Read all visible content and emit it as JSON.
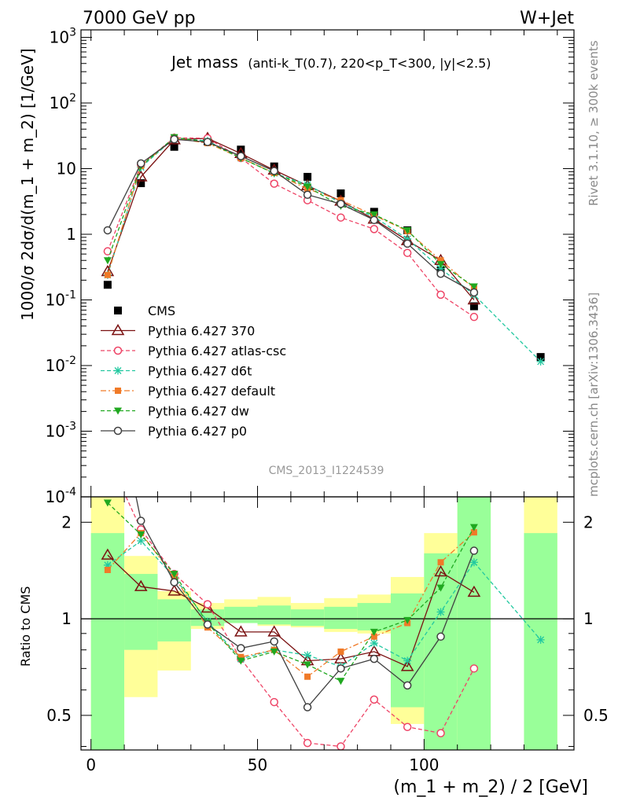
{
  "header": {
    "left": "7000 GeV pp",
    "right": "W+Jet"
  },
  "side_labels": {
    "rivet": "Rivet 3.1.10, ≥ 300k events",
    "mcplots": "mcplots.cern.ch [arXiv:1306.3436]"
  },
  "analysis_id": "CMS_2013_I1224539",
  "chart_data": [
    {
      "type": "scatter",
      "title": "Jet mass",
      "subtitle": "(anti-k_T(0.7), 220<p_T<300, |y|<2.5)",
      "ylabel": "1000/σ 2dσ/d(m_1 + m_2) [1/GeV]",
      "xlabel": "(m_1 + m_2) / 2 [GeV]",
      "yscale": "log",
      "xlim": [
        -3,
        145
      ],
      "ylim": [
        0.0001,
        1300
      ],
      "y_ticks": [
        "10^-4",
        "10^-3",
        "10^-2",
        "10^-1",
        "1",
        "10",
        "10^2",
        "10^3"
      ],
      "legend_position": "lower-left",
      "x": [
        5,
        15,
        25,
        35,
        45,
        55,
        65,
        75,
        85,
        95,
        105,
        115,
        135
      ],
      "series": [
        {
          "name": "CMS",
          "color": "#000000",
          "marker": "square",
          "line": "none",
          "values": [
            0.17,
            6.0,
            21.5,
            26.0,
            19.5,
            10.8,
            7.5,
            4.2,
            2.2,
            1.15,
            0.28,
            0.08,
            0.0135
          ]
        },
        {
          "name": "Pythia 6.427 370",
          "color": "#7a1010",
          "marker": "triangle-open",
          "line": "solid",
          "values": [
            0.27,
            7.5,
            27.5,
            29.0,
            17.0,
            9.5,
            5.5,
            3.2,
            1.7,
            0.8,
            0.4,
            0.1,
            null
          ]
        },
        {
          "name": "Pythia 6.427 atlas-csc",
          "color": "#ee4466",
          "marker": "circle-open",
          "line": "dashed",
          "values": [
            0.55,
            11.5,
            29.5,
            29.0,
            14.5,
            5.9,
            3.3,
            1.8,
            1.2,
            0.52,
            0.12,
            0.055,
            null
          ]
        },
        {
          "name": "Pythia 6.427 d6t",
          "color": "#22c8a0",
          "marker": "star",
          "line": "dashed",
          "values": [
            0.24,
            10.5,
            29.0,
            26.5,
            14.5,
            8.5,
            5.7,
            3.0,
            1.85,
            0.85,
            0.3,
            0.12,
            0.0115
          ]
        },
        {
          "name": "Pythia 6.427 default",
          "color": "#f07a28",
          "marker": "square-filled",
          "line": "dashdot",
          "values": [
            0.24,
            11.0,
            29.0,
            24.5,
            14.5,
            8.6,
            4.9,
            3.3,
            1.95,
            1.12,
            0.4,
            0.15,
            null
          ]
        },
        {
          "name": "Pythia 6.427 dw",
          "color": "#20a820",
          "marker": "triangle-down-filled",
          "line": "dashed",
          "values": [
            0.4,
            11.0,
            30.0,
            25.5,
            14.5,
            8.5,
            5.3,
            2.7,
            2.0,
            1.15,
            0.35,
            0.16,
            null
          ]
        },
        {
          "name": "Pythia 6.427 p0",
          "color": "#404040",
          "marker": "circle-open",
          "line": "solid",
          "values": [
            1.15,
            12.0,
            28.0,
            25.5,
            15.5,
            9.2,
            4.0,
            2.9,
            1.65,
            0.72,
            0.25,
            0.13,
            null
          ]
        }
      ]
    },
    {
      "type": "line",
      "ylabel": "Ratio to CMS",
      "xlabel": "(m_1 + m_2) / 2 [GeV]",
      "yscale": "log",
      "xlim": [
        -3,
        145
      ],
      "ylim": [
        0.39,
        2.4
      ],
      "x_ticks": [
        "0",
        "50",
        "100"
      ],
      "y_ticks": [
        "0.5",
        "1",
        "2"
      ],
      "reference_line": 1.0,
      "bands": {
        "x_edges": [
          0,
          10,
          20,
          30,
          40,
          50,
          60,
          70,
          80,
          90,
          100,
          110,
          120,
          130,
          140
        ],
        "yellow_low": [
          0.35,
          0.57,
          0.69,
          0.93,
          0.97,
          0.95,
          0.94,
          0.91,
          0.9,
          0.47,
          0.35,
          0.35,
          null,
          0.35
        ],
        "yellow_high": [
          2.4,
          1.57,
          1.22,
          1.12,
          1.15,
          1.17,
          1.12,
          1.16,
          1.19,
          1.35,
          1.85,
          2.4,
          null,
          2.4
        ],
        "green_low": [
          0.35,
          0.8,
          0.85,
          0.95,
          0.97,
          0.96,
          0.95,
          0.93,
          0.92,
          0.53,
          0.35,
          0.35,
          null,
          0.35
        ],
        "green_high": [
          1.85,
          1.38,
          1.15,
          1.07,
          1.09,
          1.1,
          1.07,
          1.09,
          1.12,
          1.2,
          1.6,
          2.4,
          null,
          1.85
        ]
      },
      "series": [
        {
          "name": "Pythia 6.427 370",
          "color": "#7a1010",
          "values": [
            1.58,
            1.26,
            1.22,
            1.08,
            0.91,
            0.91,
            0.74,
            0.75,
            0.79,
            0.71,
            1.4,
            1.21,
            null
          ]
        },
        {
          "name": "Pythia 6.427 atlas-csc",
          "color": "#ee4466",
          "values": [
            3.2,
            1.9,
            1.38,
            1.11,
            0.75,
            0.55,
            0.41,
            0.4,
            0.56,
            0.46,
            0.44,
            0.7,
            null
          ]
        },
        {
          "name": "Pythia 6.427 d6t",
          "color": "#22c8a0",
          "values": [
            1.47,
            1.75,
            1.35,
            0.98,
            0.75,
            0.8,
            0.77,
            0.71,
            0.84,
            0.74,
            1.05,
            1.5,
            0.86
          ]
        },
        {
          "name": "Pythia 6.427 default",
          "color": "#f07a28",
          "values": [
            1.42,
            1.85,
            1.35,
            0.94,
            0.76,
            0.8,
            0.66,
            0.79,
            0.88,
            0.97,
            1.5,
            1.86,
            null
          ]
        },
        {
          "name": "Pythia 6.427 dw",
          "color": "#20a820",
          "values": [
            2.3,
            1.83,
            1.38,
            0.97,
            0.74,
            0.79,
            0.72,
            0.64,
            0.91,
            0.99,
            1.25,
            1.93,
            null
          ]
        },
        {
          "name": "Pythia 6.427 p0",
          "color": "#404040",
          "values": [
            6.5,
            2.02,
            1.3,
            0.96,
            0.81,
            0.85,
            0.53,
            0.7,
            0.75,
            0.62,
            0.88,
            1.63,
            null
          ]
        }
      ]
    }
  ]
}
